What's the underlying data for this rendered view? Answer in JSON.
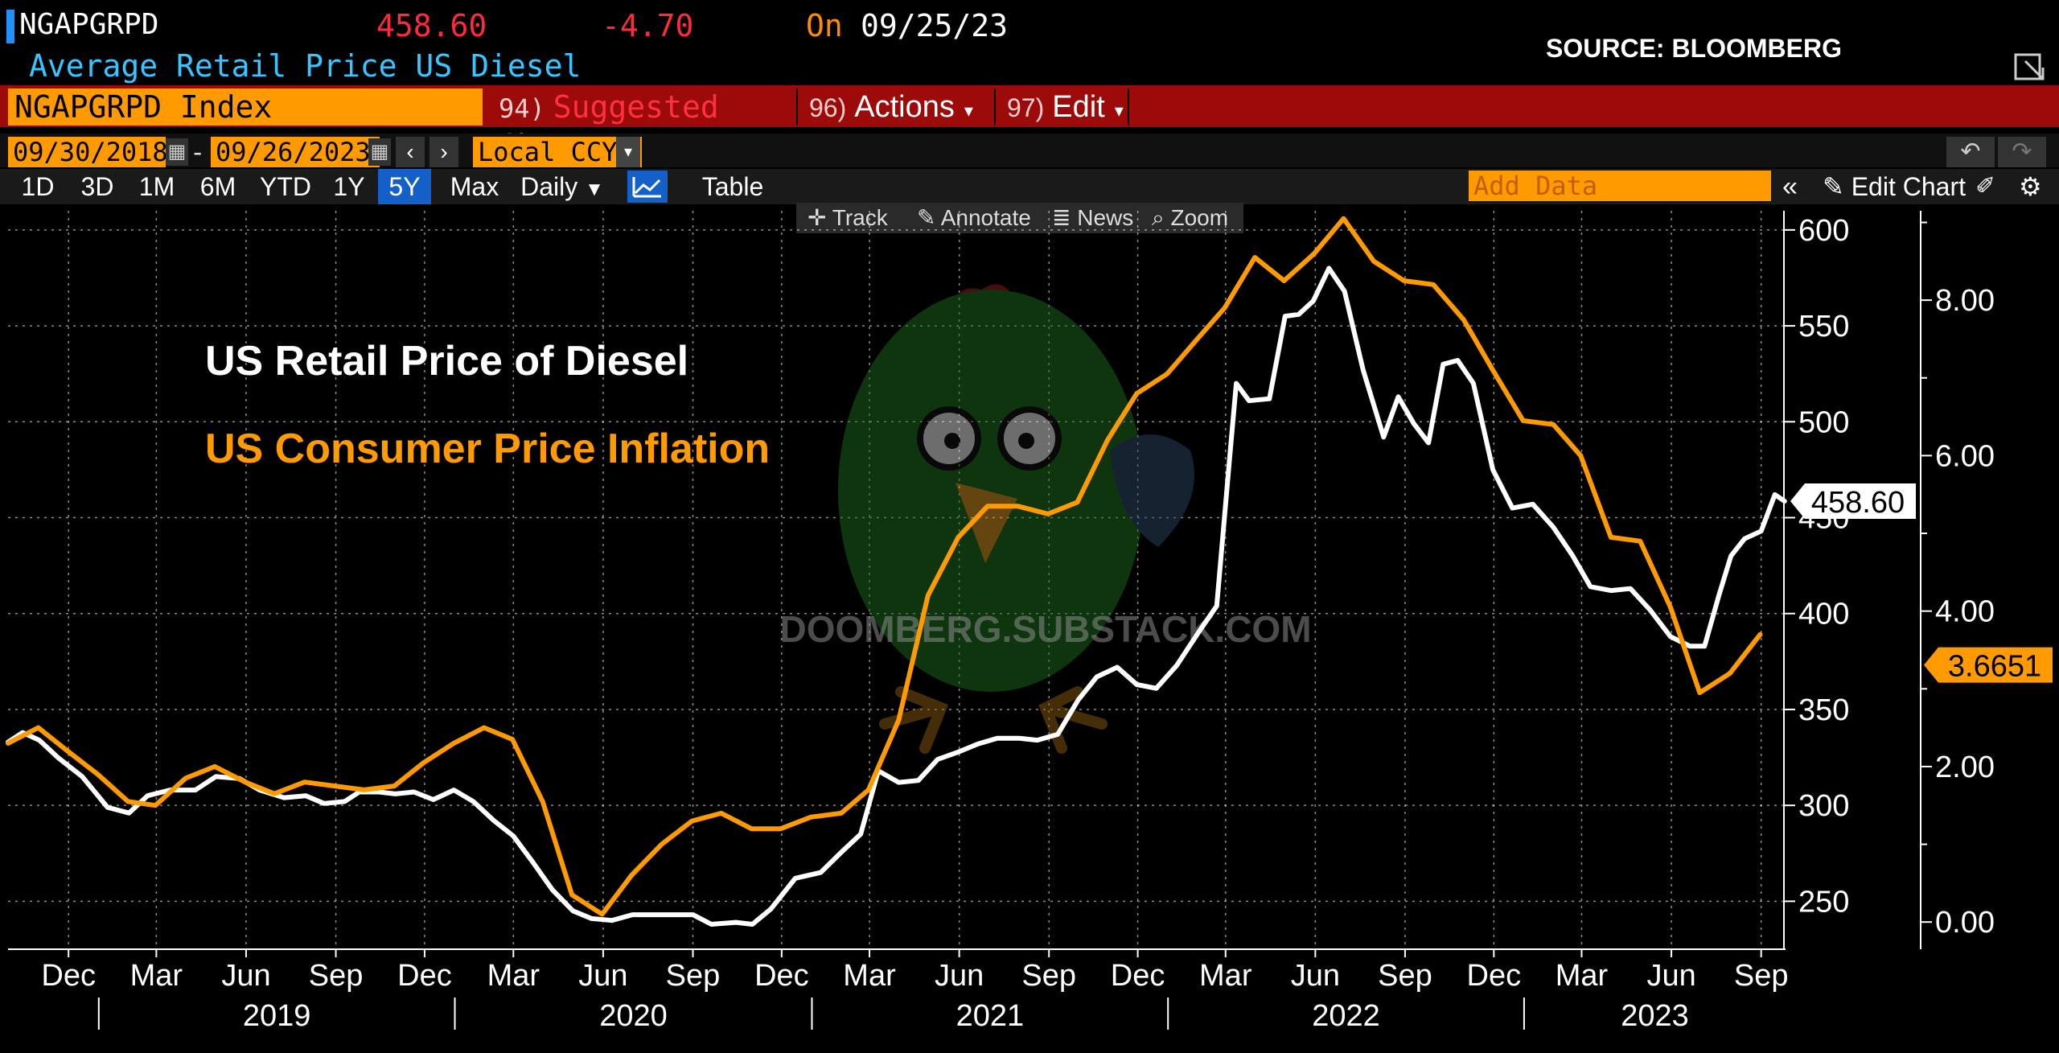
{
  "header": {
    "ticker": "NGAPGRPD",
    "last_price": "458.60",
    "change": "-4.70",
    "on_label": "On",
    "on_date": "09/25/23",
    "description": "Average Retail Price US Diesel",
    "source": "SOURCE: BLOOMBERG"
  },
  "menubar": {
    "index": "NGAPGRPD Index",
    "suggested_num": "94)",
    "suggested": "Suggested Charts",
    "actions_num": "96)",
    "actions": "Actions",
    "edit_num": "97)",
    "edit": "Edit"
  },
  "datebar": {
    "start_date": "09/30/2018",
    "dash": "-",
    "end_date": "09/26/2023",
    "currency": "Local CCY"
  },
  "periods": [
    "1D",
    "3D",
    "1M",
    "6M",
    "YTD",
    "1Y",
    "5Y",
    "Max"
  ],
  "selected_period": "5Y",
  "frequency": "Daily",
  "table_label": "Table",
  "add_data_placeholder": "Add Data",
  "edit_chart_label": "Edit Chart",
  "chart_toolbar": {
    "track": "Track",
    "annotate": "Annotate",
    "news": "News",
    "zoom": "Zoom"
  },
  "watermark": "DOOMBERG.SUBSTACK.COM",
  "colors": {
    "diesel": "#ffffff",
    "cpi": "#ff9a00",
    "menubar": "#9c0a0a",
    "accent_blue": "#1560c8"
  },
  "chart_data": {
    "type": "line",
    "annotations": [
      "US Retail Price of Diesel",
      "US Consumer Price Inflation"
    ],
    "x_ticks": [
      "Dec",
      "Mar",
      "Jun",
      "Sep",
      "Dec",
      "Mar",
      "Jun",
      "Sep",
      "Dec",
      "Mar",
      "Jun",
      "Sep",
      "Dec",
      "Mar",
      "Jun",
      "Sep",
      "Dec",
      "Mar",
      "Jun",
      "Sep"
    ],
    "x_years": [
      "2019",
      "2020",
      "2021",
      "2022",
      "2023"
    ],
    "x_range": [
      "2018-09-30",
      "2023-09-26"
    ],
    "y_left": {
      "ticks": [
        250,
        300,
        350,
        400,
        450,
        500,
        550,
        600
      ],
      "range": [
        225,
        610
      ]
    },
    "y_right": {
      "ticks": [
        "0.00",
        "2.00",
        "4.00",
        "6.00",
        "8.00"
      ],
      "range": [
        -0.35,
        9.15
      ]
    },
    "last_labels": {
      "diesel": "458.60",
      "cpi": "3.6651"
    },
    "grid": true,
    "series": [
      {
        "axis": "left",
        "points": [
          [
            "2018-09-30",
            333
          ],
          [
            "2018-10-15",
            338
          ],
          [
            "2018-11-01",
            334
          ],
          [
            "2018-11-20",
            325
          ],
          [
            "2018-12-15",
            315
          ],
          [
            "2019-01-10",
            299
          ],
          [
            "2019-02-01",
            296
          ],
          [
            "2019-02-20",
            305
          ],
          [
            "2019-03-15",
            308
          ],
          [
            "2019-04-10",
            308
          ],
          [
            "2019-05-01",
            315
          ],
          [
            "2019-05-25",
            314
          ],
          [
            "2019-06-15",
            308
          ],
          [
            "2019-07-10",
            304
          ],
          [
            "2019-08-01",
            305
          ],
          [
            "2019-08-20",
            301
          ],
          [
            "2019-09-10",
            302
          ],
          [
            "2019-09-25",
            307
          ],
          [
            "2019-10-15",
            307
          ],
          [
            "2019-11-01",
            306
          ],
          [
            "2019-11-20",
            307
          ],
          [
            "2019-12-10",
            303
          ],
          [
            "2019-12-31",
            308
          ],
          [
            "2020-01-20",
            302
          ],
          [
            "2020-02-10",
            292
          ],
          [
            "2020-03-01",
            284
          ],
          [
            "2020-03-20",
            271
          ],
          [
            "2020-04-10",
            256
          ],
          [
            "2020-05-01",
            245
          ],
          [
            "2020-05-20",
            241
          ],
          [
            "2020-06-10",
            240
          ],
          [
            "2020-07-01",
            243
          ],
          [
            "2020-08-01",
            243
          ],
          [
            "2020-09-01",
            243
          ],
          [
            "2020-09-20",
            238
          ],
          [
            "2020-10-15",
            239
          ],
          [
            "2020-11-01",
            238
          ],
          [
            "2020-11-20",
            246
          ],
          [
            "2020-12-15",
            262
          ],
          [
            "2021-01-10",
            265
          ],
          [
            "2021-02-01",
            276
          ],
          [
            "2021-02-20",
            285
          ],
          [
            "2021-03-10",
            318
          ],
          [
            "2021-03-31",
            312
          ],
          [
            "2021-04-20",
            313
          ],
          [
            "2021-05-10",
            324
          ],
          [
            "2021-06-01",
            328
          ],
          [
            "2021-06-20",
            332
          ],
          [
            "2021-07-10",
            335
          ],
          [
            "2021-08-01",
            335
          ],
          [
            "2021-08-20",
            334
          ],
          [
            "2021-09-10",
            337
          ],
          [
            "2021-10-01",
            355
          ],
          [
            "2021-10-20",
            367
          ],
          [
            "2021-11-10",
            372
          ],
          [
            "2021-11-30",
            363
          ],
          [
            "2021-12-20",
            361
          ],
          [
            "2022-01-10",
            373
          ],
          [
            "2022-02-01",
            390
          ],
          [
            "2022-02-20",
            404
          ],
          [
            "2022-03-05",
            480
          ],
          [
            "2022-03-12",
            520
          ],
          [
            "2022-03-25",
            511
          ],
          [
            "2022-04-15",
            512
          ],
          [
            "2022-05-01",
            555
          ],
          [
            "2022-05-15",
            556
          ],
          [
            "2022-05-30",
            563
          ],
          [
            "2022-06-15",
            580
          ],
          [
            "2022-07-01",
            568
          ],
          [
            "2022-07-20",
            527
          ],
          [
            "2022-08-10",
            492
          ],
          [
            "2022-08-25",
            513
          ],
          [
            "2022-09-10",
            499
          ],
          [
            "2022-09-25",
            489
          ],
          [
            "2022-10-10",
            530
          ],
          [
            "2022-10-25",
            532
          ],
          [
            "2022-11-10",
            520
          ],
          [
            "2022-11-30",
            475
          ],
          [
            "2022-12-20",
            455
          ],
          [
            "2023-01-10",
            457
          ],
          [
            "2023-01-31",
            445
          ],
          [
            "2023-02-20",
            430
          ],
          [
            "2023-03-10",
            414
          ],
          [
            "2023-03-31",
            412
          ],
          [
            "2023-04-20",
            413
          ],
          [
            "2023-05-10",
            402
          ],
          [
            "2023-05-31",
            388
          ],
          [
            "2023-06-20",
            383
          ],
          [
            "2023-07-05",
            383
          ],
          [
            "2023-07-20",
            410
          ],
          [
            "2023-08-01",
            430
          ],
          [
            "2023-08-15",
            439
          ],
          [
            "2023-09-01",
            443
          ],
          [
            "2023-09-15",
            462
          ],
          [
            "2023-09-25",
            458.6
          ]
        ]
      },
      {
        "axis": "right",
        "points": [
          [
            "2018-09-30",
            2.3
          ],
          [
            "2018-10-31",
            2.5
          ],
          [
            "2018-11-30",
            2.2
          ],
          [
            "2018-12-31",
            1.9
          ],
          [
            "2019-01-31",
            1.55
          ],
          [
            "2019-02-28",
            1.5
          ],
          [
            "2019-03-31",
            1.85
          ],
          [
            "2019-04-30",
            2.0
          ],
          [
            "2019-05-31",
            1.8
          ],
          [
            "2019-06-30",
            1.65
          ],
          [
            "2019-07-31",
            1.8
          ],
          [
            "2019-08-31",
            1.75
          ],
          [
            "2019-09-30",
            1.7
          ],
          [
            "2019-10-31",
            1.75
          ],
          [
            "2019-11-30",
            2.05
          ],
          [
            "2019-12-31",
            2.3
          ],
          [
            "2020-01-31",
            2.5
          ],
          [
            "2020-02-29",
            2.35
          ],
          [
            "2020-03-31",
            1.55
          ],
          [
            "2020-04-30",
            0.35
          ],
          [
            "2020-05-31",
            0.1
          ],
          [
            "2020-06-30",
            0.6
          ],
          [
            "2020-07-31",
            1.0
          ],
          [
            "2020-08-31",
            1.3
          ],
          [
            "2020-09-30",
            1.4
          ],
          [
            "2020-10-31",
            1.2
          ],
          [
            "2020-11-30",
            1.2
          ],
          [
            "2020-12-31",
            1.35
          ],
          [
            "2021-01-31",
            1.4
          ],
          [
            "2021-02-28",
            1.7
          ],
          [
            "2021-03-31",
            2.6
          ],
          [
            "2021-04-30",
            4.2
          ],
          [
            "2021-05-31",
            4.95
          ],
          [
            "2021-06-30",
            5.35
          ],
          [
            "2021-07-31",
            5.35
          ],
          [
            "2021-08-31",
            5.25
          ],
          [
            "2021-09-30",
            5.4
          ],
          [
            "2021-10-31",
            6.2
          ],
          [
            "2021-11-30",
            6.8
          ],
          [
            "2021-12-31",
            7.05
          ],
          [
            "2022-01-31",
            7.5
          ],
          [
            "2022-02-28",
            7.9
          ],
          [
            "2022-03-31",
            8.55
          ],
          [
            "2022-04-30",
            8.25
          ],
          [
            "2022-05-31",
            8.6
          ],
          [
            "2022-06-30",
            9.05
          ],
          [
            "2022-07-31",
            8.5
          ],
          [
            "2022-08-31",
            8.25
          ],
          [
            "2022-09-30",
            8.2
          ],
          [
            "2022-10-31",
            7.75
          ],
          [
            "2022-11-30",
            7.1
          ],
          [
            "2022-12-31",
            6.45
          ],
          [
            "2023-01-31",
            6.4
          ],
          [
            "2023-02-28",
            6.0
          ],
          [
            "2023-03-31",
            4.95
          ],
          [
            "2023-04-30",
            4.9
          ],
          [
            "2023-05-31",
            4.05
          ],
          [
            "2023-06-30",
            2.95
          ],
          [
            "2023-07-31",
            3.2
          ],
          [
            "2023-08-31",
            3.7
          ]
        ]
      }
    ]
  }
}
